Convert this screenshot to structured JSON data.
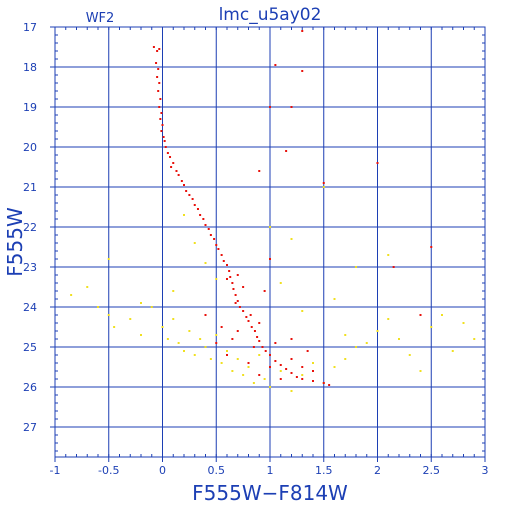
{
  "chart_data": {
    "type": "scatter",
    "title": "lmc_u5ay02",
    "panel_label": "WF2",
    "xlabel": "F555W−F814W",
    "ylabel": "F555W",
    "xlim": [
      -1,
      3
    ],
    "ylim": [
      27.75,
      17
    ],
    "y_inverted": true,
    "grid": true,
    "x_ticks": [
      -1,
      -0.5,
      0,
      0.5,
      1,
      1.5,
      2,
      2.5,
      3
    ],
    "x_tick_labels": [
      "-1",
      "-0.5",
      "0",
      "0.5",
      "1",
      "1.5",
      "2",
      "2.5",
      "3"
    ],
    "y_ticks": [
      17,
      18,
      19,
      20,
      21,
      22,
      23,
      24,
      25,
      26,
      27
    ],
    "y_tick_labels": [
      "17",
      "18",
      "19",
      "20",
      "21",
      "22",
      "23",
      "24",
      "25",
      "26",
      "27"
    ],
    "colors": {
      "axis": "#1c3fb4",
      "grid": "#1c3fb4",
      "series_primary": "#e8120c",
      "series_secondary": "#f0e020",
      "background": "#ffffff"
    },
    "series": [
      {
        "color": "#e8120c",
        "points": [
          [
            -0.08,
            17.5
          ],
          [
            -0.05,
            17.6
          ],
          [
            -0.03,
            17.55
          ],
          [
            -0.06,
            17.9
          ],
          [
            -0.04,
            18.05
          ],
          [
            -0.05,
            18.25
          ],
          [
            -0.03,
            18.4
          ],
          [
            -0.04,
            18.6
          ],
          [
            -0.02,
            18.8
          ],
          [
            -0.03,
            19.0
          ],
          [
            -0.01,
            19.15
          ],
          [
            -0.02,
            19.3
          ],
          [
            0.0,
            19.45
          ],
          [
            -0.01,
            19.6
          ],
          [
            0.01,
            19.75
          ],
          [
            0.02,
            19.85
          ],
          [
            0.03,
            20.0
          ],
          [
            0.05,
            20.15
          ],
          [
            0.07,
            20.25
          ],
          [
            0.1,
            20.4
          ],
          [
            0.08,
            20.5
          ],
          [
            0.13,
            20.6
          ],
          [
            0.15,
            20.7
          ],
          [
            0.18,
            20.85
          ],
          [
            0.2,
            20.95
          ],
          [
            0.22,
            21.1
          ],
          [
            0.25,
            21.2
          ],
          [
            0.28,
            21.3
          ],
          [
            0.3,
            21.45
          ],
          [
            0.33,
            21.55
          ],
          [
            0.35,
            21.7
          ],
          [
            0.38,
            21.8
          ],
          [
            0.4,
            21.95
          ],
          [
            0.43,
            22.05
          ],
          [
            0.45,
            22.2
          ],
          [
            0.48,
            22.3
          ],
          [
            0.5,
            22.45
          ],
          [
            0.52,
            22.55
          ],
          [
            0.55,
            22.7
          ],
          [
            0.57,
            22.85
          ],
          [
            0.6,
            22.95
          ],
          [
            0.62,
            23.1
          ],
          [
            0.63,
            23.25
          ],
          [
            0.65,
            23.4
          ],
          [
            0.66,
            23.55
          ],
          [
            0.68,
            23.7
          ],
          [
            0.7,
            23.85
          ],
          [
            0.72,
            24.0
          ],
          [
            0.75,
            24.1
          ],
          [
            0.78,
            24.25
          ],
          [
            0.8,
            24.35
          ],
          [
            0.83,
            24.5
          ],
          [
            0.86,
            24.6
          ],
          [
            0.88,
            24.75
          ],
          [
            0.9,
            24.85
          ],
          [
            0.93,
            25.0
          ],
          [
            0.96,
            25.1
          ],
          [
            1.0,
            25.2
          ],
          [
            1.05,
            25.35
          ],
          [
            1.1,
            25.45
          ],
          [
            1.15,
            25.55
          ],
          [
            1.2,
            25.65
          ],
          [
            1.25,
            25.75
          ],
          [
            1.3,
            25.8
          ],
          [
            1.4,
            25.85
          ],
          [
            1.5,
            25.9
          ],
          [
            1.55,
            25.95
          ],
          [
            0.7,
            23.2
          ],
          [
            0.6,
            23.3
          ],
          [
            0.75,
            23.5
          ],
          [
            0.68,
            23.9
          ],
          [
            0.82,
            24.2
          ],
          [
            0.9,
            24.4
          ],
          [
            0.7,
            24.6
          ],
          [
            0.85,
            25.0
          ],
          [
            1.0,
            25.5
          ],
          [
            1.1,
            25.8
          ],
          [
            1.2,
            25.3
          ],
          [
            1.3,
            25.5
          ],
          [
            1.4,
            25.6
          ],
          [
            0.5,
            24.9
          ],
          [
            0.6,
            25.2
          ],
          [
            0.8,
            25.4
          ],
          [
            0.9,
            25.7
          ],
          [
            1.05,
            24.9
          ],
          [
            1.2,
            24.8
          ],
          [
            1.35,
            25.1
          ],
          [
            0.4,
            24.2
          ],
          [
            0.55,
            24.5
          ],
          [
            0.65,
            24.8
          ],
          [
            0.95,
            23.6
          ],
          [
            1.0,
            22.8
          ],
          [
            1.0,
            19.0
          ],
          [
            1.05,
            17.95
          ],
          [
            1.2,
            19.0
          ],
          [
            1.3,
            18.1
          ],
          [
            1.15,
            20.1
          ],
          [
            0.9,
            20.6
          ],
          [
            1.5,
            20.9
          ],
          [
            2.15,
            23.0
          ],
          [
            2.5,
            22.5
          ],
          [
            2.4,
            24.2
          ],
          [
            2.0,
            20.4
          ],
          [
            1.3,
            17.1
          ]
        ]
      },
      {
        "color": "#f0e020",
        "points": [
          [
            -0.85,
            23.7
          ],
          [
            -0.7,
            23.5
          ],
          [
            -0.6,
            24.0
          ],
          [
            -0.5,
            24.2
          ],
          [
            -0.45,
            24.5
          ],
          [
            -0.3,
            24.3
          ],
          [
            -0.2,
            24.7
          ],
          [
            -0.1,
            24.0
          ],
          [
            0.0,
            24.5
          ],
          [
            0.05,
            24.8
          ],
          [
            0.1,
            24.3
          ],
          [
            0.15,
            24.9
          ],
          [
            0.2,
            25.1
          ],
          [
            0.25,
            24.6
          ],
          [
            0.3,
            25.2
          ],
          [
            0.35,
            24.8
          ],
          [
            0.4,
            25.0
          ],
          [
            0.45,
            25.3
          ],
          [
            0.5,
            24.7
          ],
          [
            0.55,
            25.4
          ],
          [
            0.6,
            25.1
          ],
          [
            0.65,
            25.6
          ],
          [
            0.7,
            25.3
          ],
          [
            0.75,
            25.7
          ],
          [
            0.8,
            25.5
          ],
          [
            0.85,
            25.9
          ],
          [
            0.9,
            25.2
          ],
          [
            0.95,
            25.8
          ],
          [
            1.0,
            26.0
          ],
          [
            1.1,
            25.6
          ],
          [
            1.2,
            26.1
          ],
          [
            1.3,
            25.7
          ],
          [
            1.4,
            25.4
          ],
          [
            1.5,
            25.9
          ],
          [
            1.6,
            25.5
          ],
          [
            1.7,
            25.3
          ],
          [
            1.8,
            25.0
          ],
          [
            1.9,
            24.9
          ],
          [
            2.0,
            24.6
          ],
          [
            2.1,
            24.3
          ],
          [
            2.2,
            24.8
          ],
          [
            2.3,
            25.2
          ],
          [
            2.4,
            25.6
          ],
          [
            2.5,
            24.5
          ],
          [
            2.6,
            24.2
          ],
          [
            2.7,
            25.1
          ],
          [
            2.8,
            24.4
          ],
          [
            2.9,
            24.8
          ],
          [
            -0.5,
            22.8
          ],
          [
            0.2,
            21.7
          ],
          [
            0.3,
            22.4
          ],
          [
            0.4,
            22.9
          ],
          [
            1.0,
            22.0
          ],
          [
            1.2,
            22.3
          ],
          [
            1.5,
            21.0
          ],
          [
            1.8,
            23.0
          ],
          [
            1.1,
            23.4
          ],
          [
            1.6,
            23.8
          ],
          [
            2.1,
            22.7
          ],
          [
            0.1,
            23.6
          ],
          [
            -0.2,
            23.9
          ],
          [
            0.5,
            23.3
          ],
          [
            1.3,
            24.1
          ],
          [
            1.7,
            24.7
          ]
        ]
      }
    ]
  }
}
